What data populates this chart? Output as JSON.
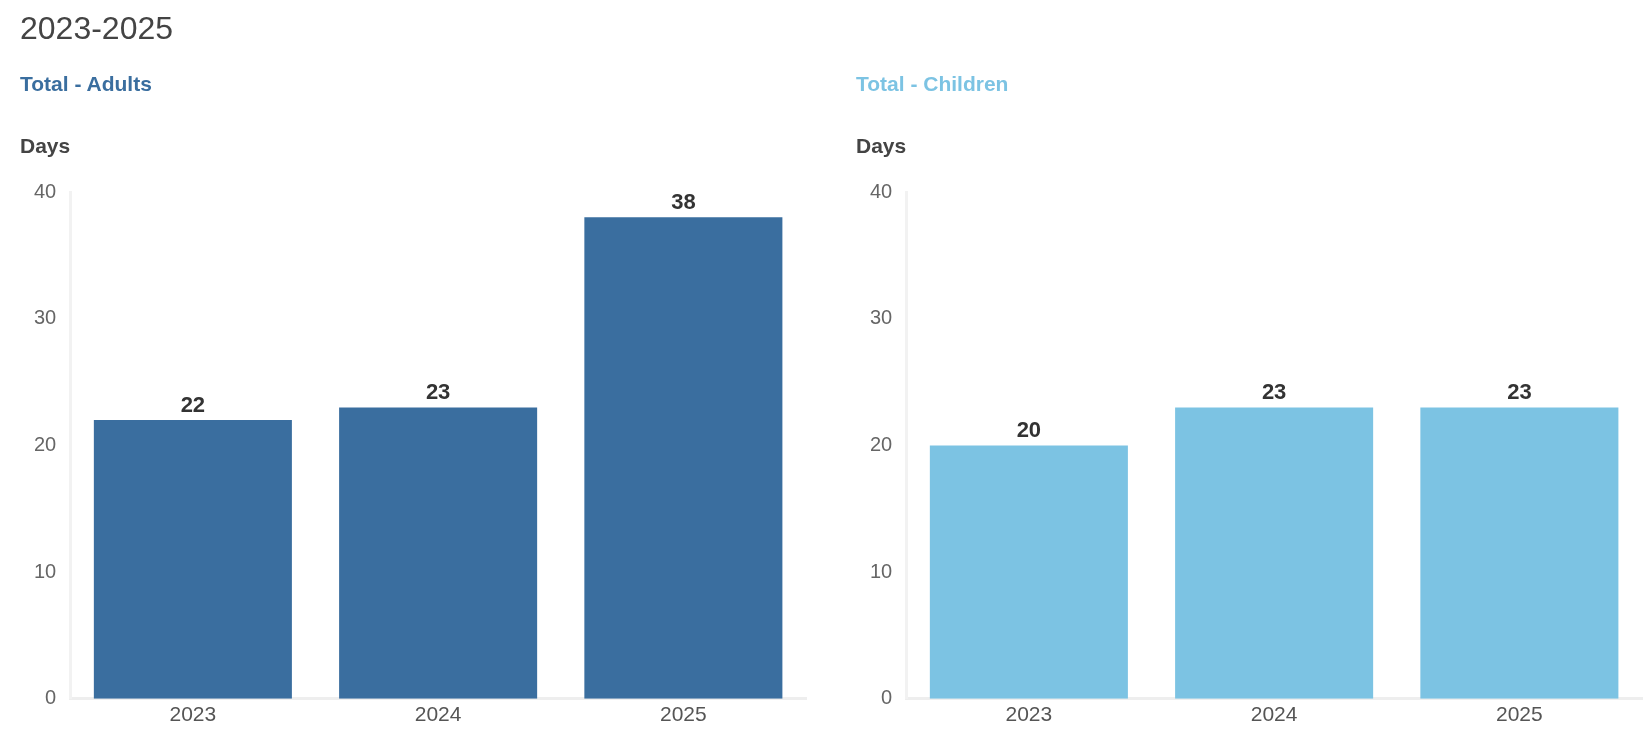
{
  "chart_data": [
    {
      "type": "bar",
      "title": "2023-2025",
      "subtitle": "Total - Adults",
      "ylabel": "Days",
      "categories": [
        "2023",
        "2024",
        "2025"
      ],
      "values": [
        22,
        23,
        38
      ],
      "color": "#3a6e9f",
      "ylim": [
        0,
        40
      ],
      "yticks": [
        0,
        10,
        20,
        30,
        40
      ],
      "data_labels": true,
      "grid": false,
      "legend": false
    },
    {
      "type": "bar",
      "subtitle": "Total - Children",
      "ylabel": "Days",
      "categories": [
        "2023",
        "2024",
        "2025"
      ],
      "values": [
        20,
        23,
        23
      ],
      "color": "#7cc3e3",
      "ylim": [
        0,
        40
      ],
      "yticks": [
        0,
        10,
        20,
        30,
        40
      ],
      "data_labels": true,
      "grid": false,
      "legend": false
    }
  ]
}
